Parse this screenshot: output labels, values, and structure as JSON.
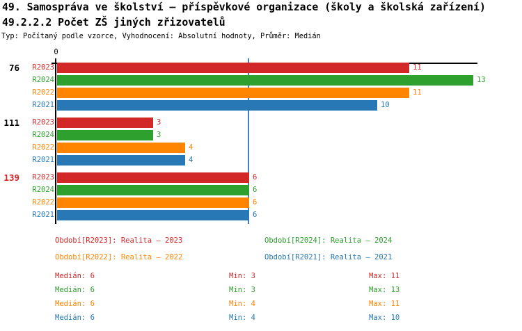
{
  "header": {
    "title_line1": "49. Samospráva ve školství – příspěvkové organizace (školy a školská zařízení)",
    "title_line2": "49.2.2.2 Počet ZŠ jiných zřizovatelů",
    "subtitle": "Typ: Počítaný podle vzorce, Vyhodnocení: Absolutní hodnoty, Průměr: Medián"
  },
  "chart_data": {
    "type": "bar",
    "orientation": "horizontal",
    "x_axis": {
      "origin_label": "0",
      "xlim": [
        0,
        13.1
      ],
      "ticks_shown": [
        "0"
      ]
    },
    "reference_line": {
      "meaning": "median",
      "value": 6,
      "color": "#3c82c3"
    },
    "categories": [
      "76",
      "111",
      "139"
    ],
    "category_colors": [
      "#000000",
      "#000000",
      "#d22828"
    ],
    "series": [
      {
        "name": "R2023",
        "color": "#d22828",
        "values": [
          11,
          3,
          6
        ]
      },
      {
        "name": "R2024",
        "color": "#2da02d",
        "values": [
          13,
          3,
          6
        ]
      },
      {
        "name": "R2022",
        "color": "#ff8400",
        "values": [
          11,
          4,
          6
        ]
      },
      {
        "name": "R2021",
        "color": "#2778b4",
        "values": [
          10,
          4,
          6
        ]
      }
    ],
    "value_labels_shown": true,
    "legend_position": "bottom",
    "grid": false
  },
  "legend": {
    "items": [
      {
        "label": "Období[R2023]: Realita – 2023",
        "color": "#d22828"
      },
      {
        "label": "Období[R2024]: Realita – 2024",
        "color": "#2da02d"
      },
      {
        "label": "Období[R2022]: Realita – 2022",
        "color": "#ff8400"
      },
      {
        "label": "Období[R2021]: Realita – 2021",
        "color": "#2778b4"
      }
    ]
  },
  "stats": {
    "rows": [
      {
        "color": "#d22828",
        "median": "Medián: 6",
        "min": "Min: 3",
        "max": "Max: 11"
      },
      {
        "color": "#2da02d",
        "median": "Medián: 6",
        "min": "Min: 3",
        "max": "Max: 13"
      },
      {
        "color": "#ff8400",
        "median": "Medián: 6",
        "min": "Min: 4",
        "max": "Max: 11"
      },
      {
        "color": "#2778b4",
        "median": "Medián: 6",
        "min": "Min: 4",
        "max": "Max: 10"
      }
    ]
  }
}
